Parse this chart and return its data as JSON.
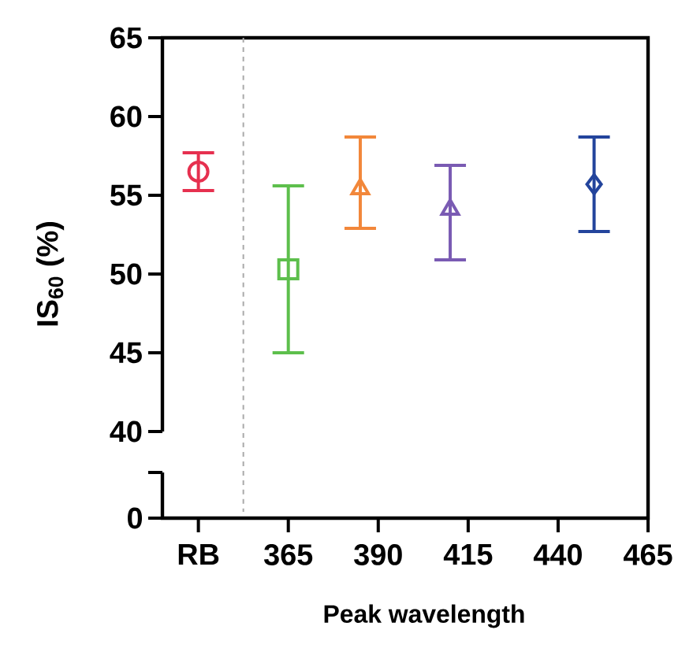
{
  "chart_data": {
    "type": "scatter",
    "ylabel": "IS$_{60}$ (%)",
    "xlabel": "Peak wavelength",
    "xlim": [
      330,
      465
    ],
    "ylim": [
      40,
      65
    ],
    "yticks": [
      40,
      45,
      50,
      55,
      60,
      65
    ],
    "xticks": [
      {
        "value": 340,
        "label": "RB"
      },
      365,
      390,
      415,
      440,
      465
    ],
    "annotations": [
      "0"
    ],
    "ref_lines": [
      {
        "axis": "x",
        "value": 352.5,
        "color": "#aaaaaa",
        "line_style": "dashed"
      }
    ],
    "series": [
      {
        "x": [
          340
        ],
        "values": [
          56.5
        ],
        "errors": [
          [
            55.3,
            57.7
          ]
        ],
        "color": "#e6304f",
        "marker": "circle"
      },
      {
        "x": [
          365
        ],
        "values": [
          50.3
        ],
        "errors": [
          [
            45.0,
            55.6
          ]
        ],
        "color": "#5dbf4c",
        "marker": "square"
      },
      {
        "x": [
          385
        ],
        "values": [
          55.4
        ],
        "errors": [
          [
            52.9,
            58.7
          ]
        ],
        "color": "#f2873a",
        "marker": "triangle"
      },
      {
        "x": [
          410
        ],
        "values": [
          54.1
        ],
        "errors": [
          [
            50.9,
            56.9
          ]
        ],
        "color": "#7a5bb3",
        "marker": "triangle"
      },
      {
        "x": [
          450
        ],
        "values": [
          55.7
        ],
        "errors": [
          [
            52.7,
            58.7
          ]
        ],
        "color": "#23449c",
        "marker": "diamond"
      }
    ]
  }
}
